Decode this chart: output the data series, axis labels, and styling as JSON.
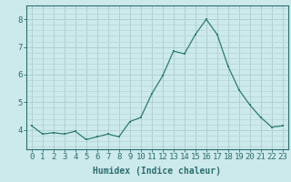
{
  "x": [
    0,
    1,
    2,
    3,
    4,
    5,
    6,
    7,
    8,
    9,
    10,
    11,
    12,
    13,
    14,
    15,
    16,
    17,
    18,
    19,
    20,
    21,
    22,
    23
  ],
  "y": [
    4.15,
    3.85,
    3.9,
    3.85,
    3.95,
    3.65,
    3.75,
    3.85,
    3.75,
    4.3,
    4.45,
    5.3,
    5.95,
    6.85,
    6.75,
    7.45,
    8.0,
    7.45,
    6.3,
    5.45,
    4.9,
    4.45,
    4.1,
    4.15
  ],
  "line_color": "#2d7d6e",
  "marker": "s",
  "marker_size": 2,
  "line_width": 0.9,
  "bg_color": "#cce9eb",
  "grid_color": "#b0d0d3",
  "xlabel": "Humidex (Indice chaleur)",
  "xlabel_fontsize": 7,
  "tick_fontsize": 6.5,
  "yticks": [
    4,
    5,
    6,
    7,
    8
  ],
  "ylim": [
    3.3,
    8.5
  ],
  "xlim": [
    -0.5,
    23.5
  ],
  "xtick_labels": [
    "0",
    "1",
    "2",
    "3",
    "4",
    "5",
    "6",
    "7",
    "8",
    "9",
    "10",
    "11",
    "12",
    "13",
    "14",
    "15",
    "16",
    "17",
    "18",
    "19",
    "20",
    "21",
    "22",
    "23"
  ],
  "axis_color": "#2d6e6e",
  "spine_color": "#2d6e6e"
}
